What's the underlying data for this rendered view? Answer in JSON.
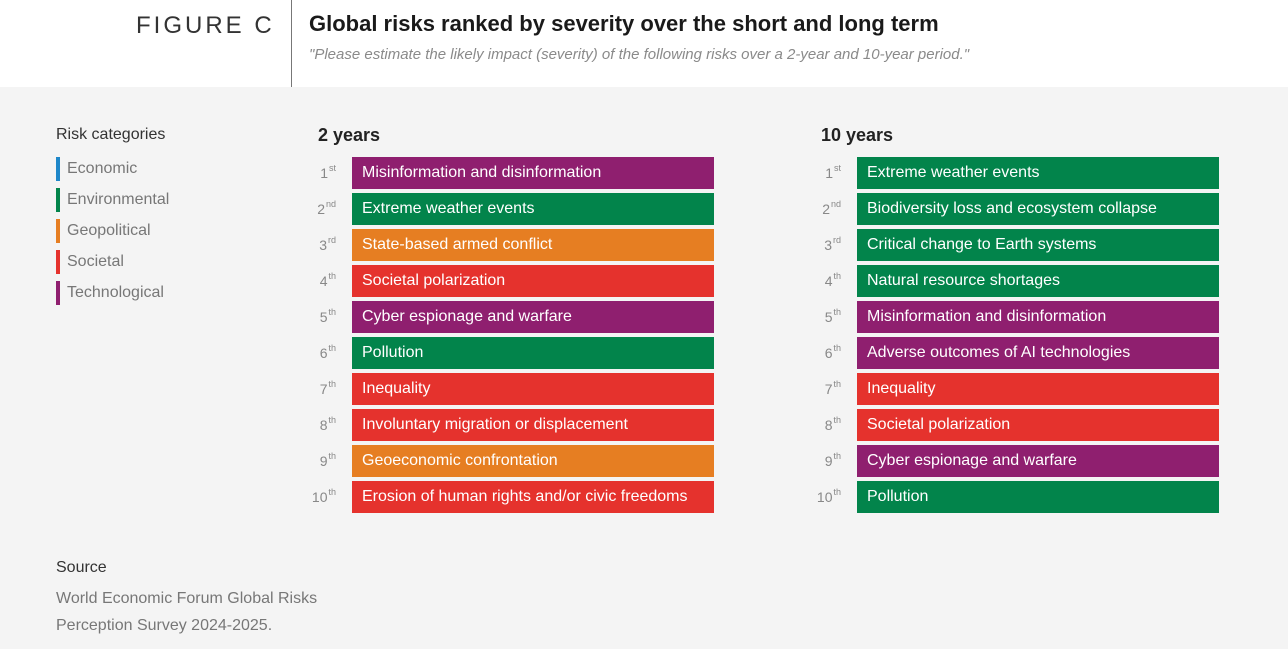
{
  "header": {
    "figure_label": "FIGURE C",
    "title": "Global risks ranked by severity over the short and long term",
    "subtitle": "\"Please estimate the likely impact (severity) of the following risks over a 2-year and 10-year period.\""
  },
  "legend": {
    "title": "Risk categories",
    "items": [
      {
        "label": "Economic",
        "color": "#1e87c9"
      },
      {
        "label": "Environmental",
        "color": "#02844b"
      },
      {
        "label": "Geopolitical",
        "color": "#e67e22"
      },
      {
        "label": "Societal",
        "color": "#e5322d"
      },
      {
        "label": "Technological",
        "color": "#8f1f6f"
      }
    ]
  },
  "chart_data": {
    "type": "table",
    "category_colors": {
      "Economic": "#1e87c9",
      "Environmental": "#02844b",
      "Geopolitical": "#e67e22",
      "Societal": "#e5322d",
      "Technological": "#8f1f6f"
    },
    "columns": [
      {
        "title": "2 years",
        "rows": [
          {
            "rank": "1",
            "suffix": "st",
            "label": "Misinformation and disinformation",
            "category": "Technological"
          },
          {
            "rank": "2",
            "suffix": "nd",
            "label": "Extreme weather events",
            "category": "Environmental"
          },
          {
            "rank": "3",
            "suffix": "rd",
            "label": "State-based armed conflict",
            "category": "Geopolitical"
          },
          {
            "rank": "4",
            "suffix": "th",
            "label": "Societal polarization",
            "category": "Societal"
          },
          {
            "rank": "5",
            "suffix": "th",
            "label": "Cyber espionage and warfare",
            "category": "Technological"
          },
          {
            "rank": "6",
            "suffix": "th",
            "label": "Pollution",
            "category": "Environmental"
          },
          {
            "rank": "7",
            "suffix": "th",
            "label": "Inequality",
            "category": "Societal"
          },
          {
            "rank": "8",
            "suffix": "th",
            "label": "Involuntary migration or displacement",
            "category": "Societal"
          },
          {
            "rank": "9",
            "suffix": "th",
            "label": "Geoeconomic confrontation",
            "category": "Geopolitical"
          },
          {
            "rank": "10",
            "suffix": "th",
            "label": "Erosion of human rights and/or civic freedoms",
            "category": "Societal"
          }
        ]
      },
      {
        "title": "10 years",
        "rows": [
          {
            "rank": "1",
            "suffix": "st",
            "label": "Extreme weather events",
            "category": "Environmental"
          },
          {
            "rank": "2",
            "suffix": "nd",
            "label": "Biodiversity loss and ecosystem collapse",
            "category": "Environmental"
          },
          {
            "rank": "3",
            "suffix": "rd",
            "label": "Critical change to Earth systems",
            "category": "Environmental"
          },
          {
            "rank": "4",
            "suffix": "th",
            "label": "Natural resource shortages",
            "category": "Environmental"
          },
          {
            "rank": "5",
            "suffix": "th",
            "label": "Misinformation and disinformation",
            "category": "Technological"
          },
          {
            "rank": "6",
            "suffix": "th",
            "label": "Adverse outcomes of AI technologies",
            "category": "Technological"
          },
          {
            "rank": "7",
            "suffix": "th",
            "label": "Inequality",
            "category": "Societal"
          },
          {
            "rank": "8",
            "suffix": "th",
            "label": "Societal polarization",
            "category": "Societal"
          },
          {
            "rank": "9",
            "suffix": "th",
            "label": "Cyber espionage and warfare",
            "category": "Technological"
          },
          {
            "rank": "10",
            "suffix": "th",
            "label": "Pollution",
            "category": "Environmental"
          }
        ]
      }
    ]
  },
  "source": {
    "title": "Source",
    "text": "World Economic Forum Global Risks Perception Survey 2024-2025."
  }
}
